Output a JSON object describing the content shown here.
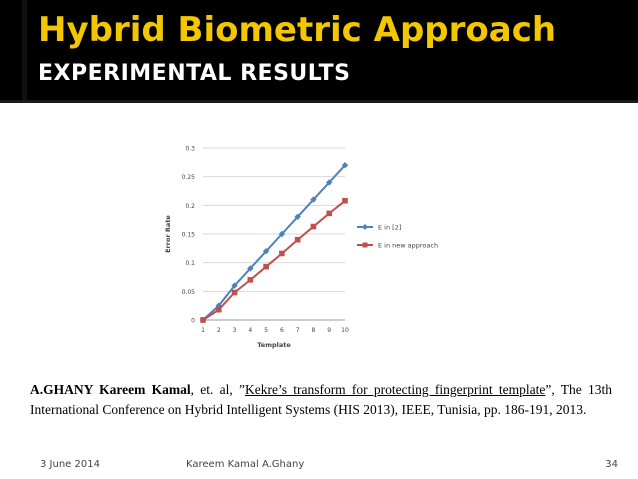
{
  "slide": {
    "title": "Hybrid Biometric Approach",
    "subtitle": "EXPERIMENTAL RESULTS"
  },
  "citation": {
    "authors": "A.GHANY Kareem Kamal",
    "etal": ", et. al, ”",
    "paper_title": "Kekre’s transform for protecting fingerprint template",
    "rest": "”, The 13th International Conference on Hybrid Intelligent Systems (HIS 2013), IEEE, Tunisia, pp. 186-191, 2013."
  },
  "footer": {
    "date": "3 June 2014",
    "author": "Kareem Kamal A.Ghany",
    "page": "34"
  },
  "chart_data": {
    "type": "line",
    "x": [
      1,
      2,
      3,
      4,
      5,
      6,
      7,
      8,
      9,
      10
    ],
    "xlabel": "Template",
    "ylabel": "Error Rate",
    "ylim": [
      0,
      0.3
    ],
    "yticks": [
      "0",
      "0.05",
      "0.1",
      "0.15",
      "0.2",
      "0.25",
      "0.3"
    ],
    "grid": true,
    "legend_position": "right",
    "series": [
      {
        "name": "E in [2]",
        "color": "#4f81bd",
        "marker": "diamond",
        "values": [
          0,
          0.025,
          0.06,
          0.09,
          0.12,
          0.15,
          0.18,
          0.21,
          0.24,
          0.27
        ]
      },
      {
        "name": "E in new approach",
        "color": "#c0504d",
        "marker": "square",
        "values": [
          0,
          0.018,
          0.048,
          0.07,
          0.093,
          0.116,
          0.14,
          0.163,
          0.186,
          0.208
        ]
      }
    ]
  }
}
